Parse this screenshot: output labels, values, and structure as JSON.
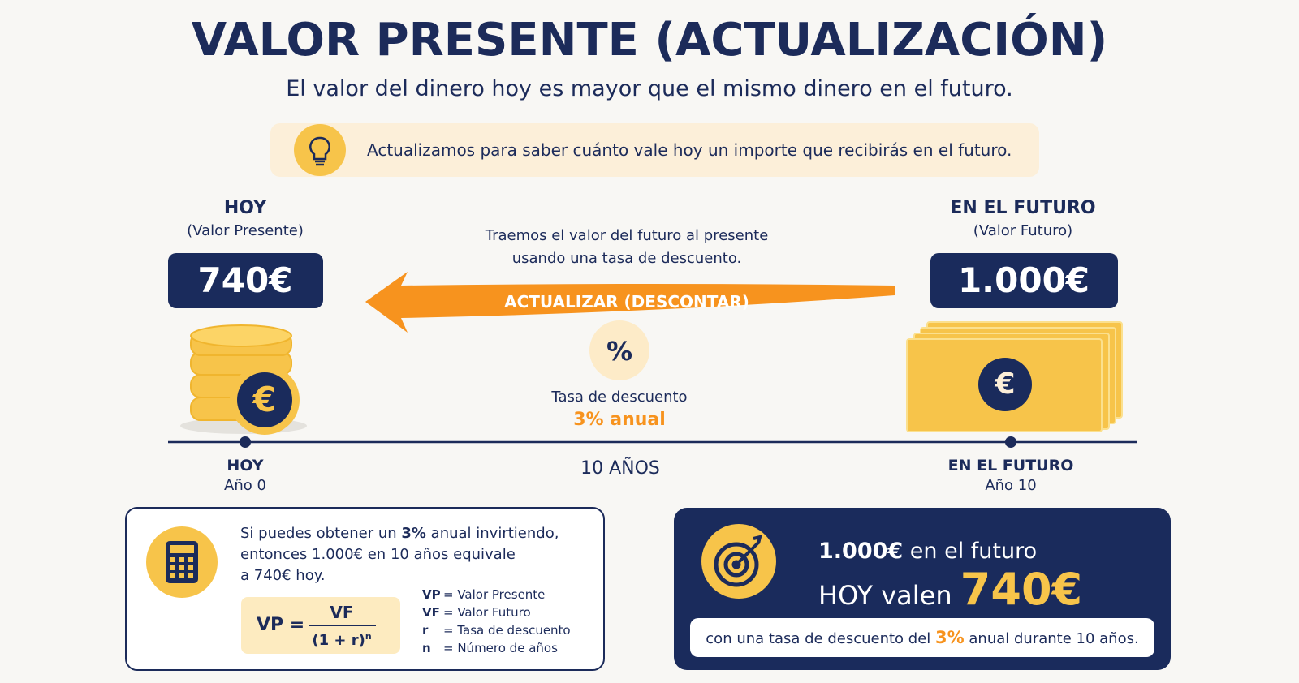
{
  "header": {
    "title": "VALOR PRESENTE (ACTUALIZACIÓN)",
    "subtitle": "El valor del dinero hoy es mayor que el mismo dinero en el futuro."
  },
  "tip": "Actualizamos para saber cuánto vale hoy un importe que recibirás en el futuro.",
  "currency_symbol": "€",
  "present": {
    "title": "HOY",
    "subtitle": "(Valor Presente)",
    "amount": "740€"
  },
  "future": {
    "title": "EN EL FUTURO",
    "subtitle": "(Valor Futuro)",
    "amount": "1.000€"
  },
  "arrow": {
    "note_lines": [
      "Traemos el valor del futuro al presente",
      "usando una tasa de descuento."
    ],
    "label": "ACTUALIZAR (DESCONTAR)"
  },
  "rate": {
    "icon": "%",
    "label": "Tasa de descuento",
    "value": "3% anual"
  },
  "timeline": {
    "start": {
      "label": "HOY",
      "year": "Año 0"
    },
    "middle": "10 AÑOS",
    "end": {
      "label": "EN EL FUTURO",
      "year": "Año 10"
    }
  },
  "explanation": {
    "line1": [
      "Si puedes obtener un ",
      "3%",
      " anual invirtiendo,"
    ],
    "line2": "entonces 1.000€ en 10 años equivale",
    "line3": "a 740€ hoy."
  },
  "formula": {
    "lhs": "VP =",
    "numerator": "VF",
    "denominator": "(1 + r)",
    "exponent": "n"
  },
  "legend": [
    {
      "symbol": "VP",
      "text": "= Valor Presente"
    },
    {
      "symbol": "VF",
      "text": "= Valor Futuro"
    },
    {
      "symbol": "r",
      "text": "= Tasa de descuento"
    },
    {
      "symbol": "n",
      "text": "= Número de años"
    }
  ],
  "result": {
    "line1": [
      "1.000€",
      " en el futuro"
    ],
    "line2": [
      "HOY valen ",
      "740€"
    ],
    "note": [
      "con una tasa de descuento del ",
      "3%",
      " anual durante 10 años."
    ]
  }
}
